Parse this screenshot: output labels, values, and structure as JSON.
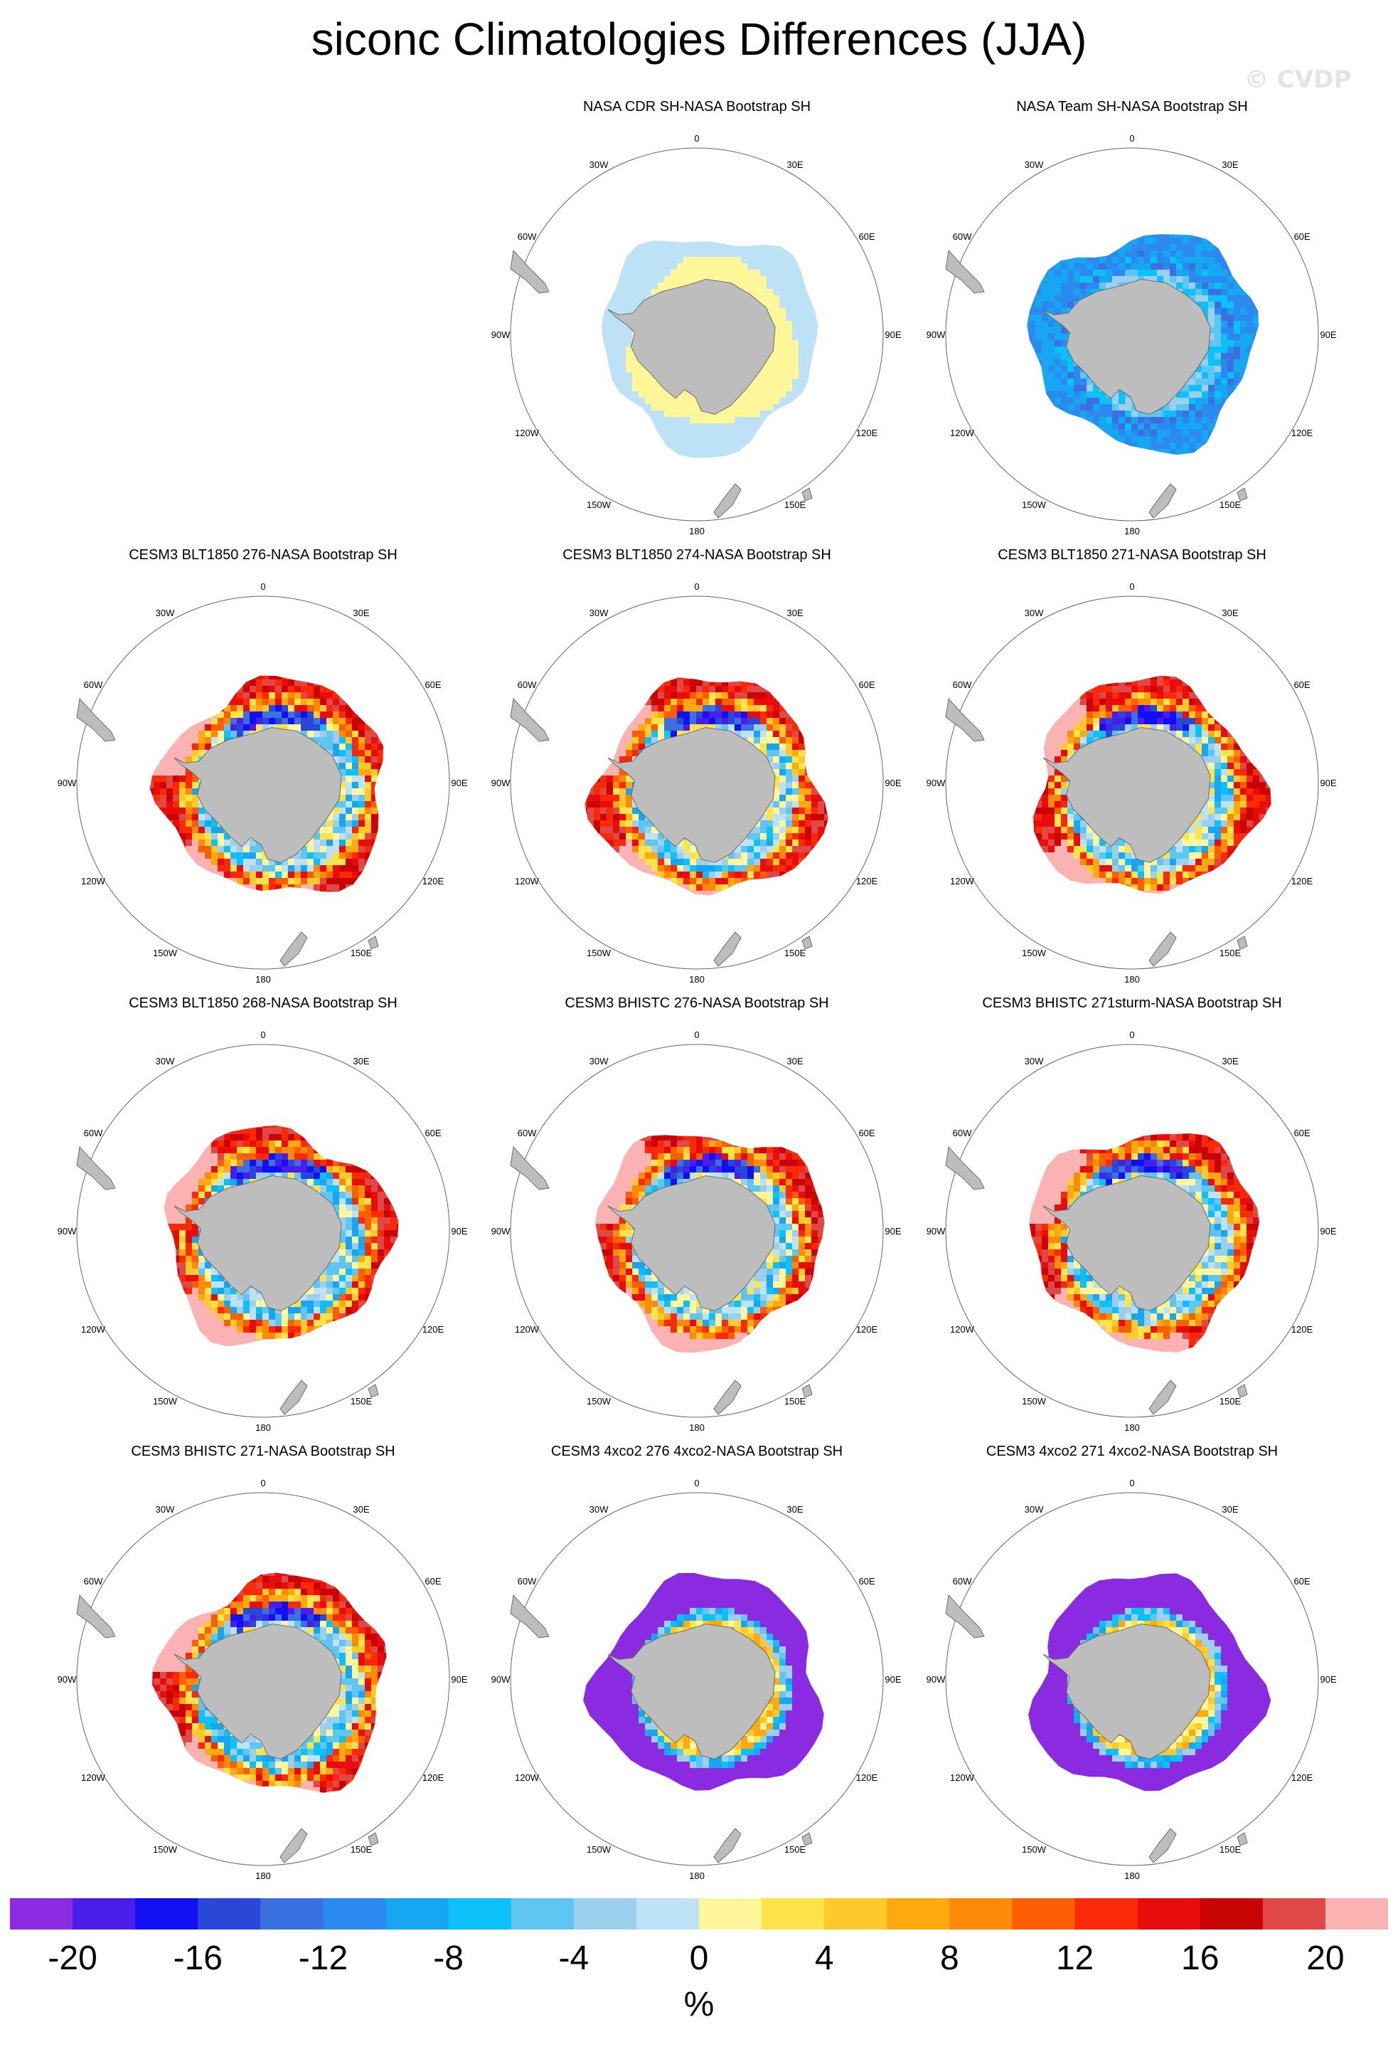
{
  "title": "siconc Climatologies Differences (JJA)",
  "watermark": "© CVDP",
  "longitude_labels": [
    "0",
    "30E",
    "60E",
    "90E",
    "120E",
    "150E",
    "180",
    "150W",
    "120W",
    "90W",
    "60W",
    "30W"
  ],
  "panels": [
    {
      "title": "NASA CDR SH-NASA Bootstrap SH",
      "pattern": "cdr"
    },
    {
      "title": "NASA Team SH-NASA Bootstrap SH",
      "pattern": "team"
    },
    {
      "title": "CESM3 BLT1850 276-NASA Bootstrap SH",
      "pattern": "model"
    },
    {
      "title": "CESM3 BLT1850 274-NASA Bootstrap SH",
      "pattern": "model"
    },
    {
      "title": "CESM3 BLT1850 271-NASA Bootstrap SH",
      "pattern": "model"
    },
    {
      "title": "CESM3 BLT1850 268-NASA Bootstrap SH",
      "pattern": "model"
    },
    {
      "title": "CESM3 BHISTC 276-NASA Bootstrap SH",
      "pattern": "model"
    },
    {
      "title": "CESM3 BHISTC 271sturm-NASA Bootstrap SH",
      "pattern": "model"
    },
    {
      "title": "CESM3 BHISTC 271-NASA Bootstrap SH",
      "pattern": "model"
    },
    {
      "title": "CESM3 4xco2 276 4xco2-NASA Bootstrap SH",
      "pattern": "warm"
    },
    {
      "title": "CESM3 4xco2 271 4xco2-NASA Bootstrap SH",
      "pattern": "warm"
    }
  ],
  "colorbar": {
    "colors": [
      "#8a2be2",
      "#4b1de8",
      "#1010f0",
      "#2a48d8",
      "#3a70e0",
      "#2a8aef",
      "#16a6f2",
      "#0cc0fa",
      "#5ec6f0",
      "#9ccfee",
      "#bee2f5",
      "#fff79a",
      "#ffe34a",
      "#fec92a",
      "#fdaa10",
      "#fd8a08",
      "#fc5e04",
      "#fa2a08",
      "#e90c0c",
      "#c80404",
      "#e04848",
      "#fbb2b2"
    ],
    "tick_labels": [
      "-20",
      "-16",
      "-12",
      "-8",
      "-4",
      "0",
      "4",
      "8",
      "12",
      "16",
      "20"
    ],
    "units": "%"
  },
  "land_color": "#bdbdbd"
}
